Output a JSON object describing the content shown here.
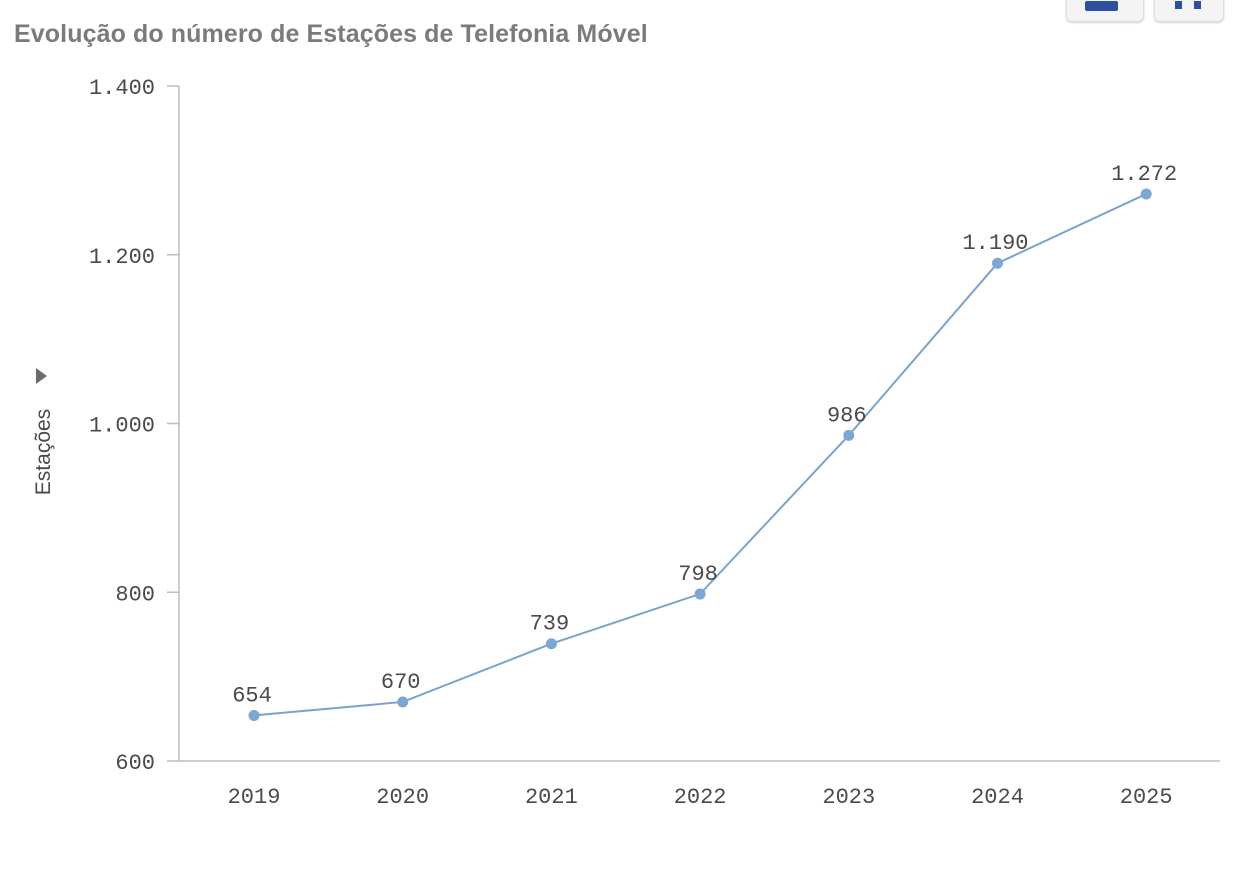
{
  "chart_title": "Evolução do número de Estações de Telefonia Móvel",
  "top_buttons": [
    {
      "icon": "table-view-icon"
    },
    {
      "icon": "chart-view-icon"
    }
  ],
  "colors": {
    "line": "#7aa3cc",
    "marker": "#7ea6d2",
    "axis": "#bdbdbd",
    "text": "#4a4a4a",
    "title": "#7b7b7b"
  },
  "chart_data": {
    "type": "line",
    "title": "Evolução do número de Estações de Telefonia Móvel",
    "xlabel": "",
    "ylabel": "Estações",
    "categories": [
      "2019",
      "2020",
      "2021",
      "2022",
      "2023",
      "2024",
      "2025"
    ],
    "values": [
      654,
      670,
      739,
      798,
      986,
      1190,
      1272
    ],
    "data_labels": [
      "654",
      "670",
      "739",
      "798",
      "986",
      "1.190",
      "1.272"
    ],
    "ylim": [
      600,
      1400
    ],
    "yticks": [
      600,
      800,
      1000,
      1200,
      1400
    ],
    "ytick_labels": [
      "600",
      "800",
      "1.000",
      "1.200",
      "1.400"
    ],
    "grid": false,
    "legend": "none"
  }
}
